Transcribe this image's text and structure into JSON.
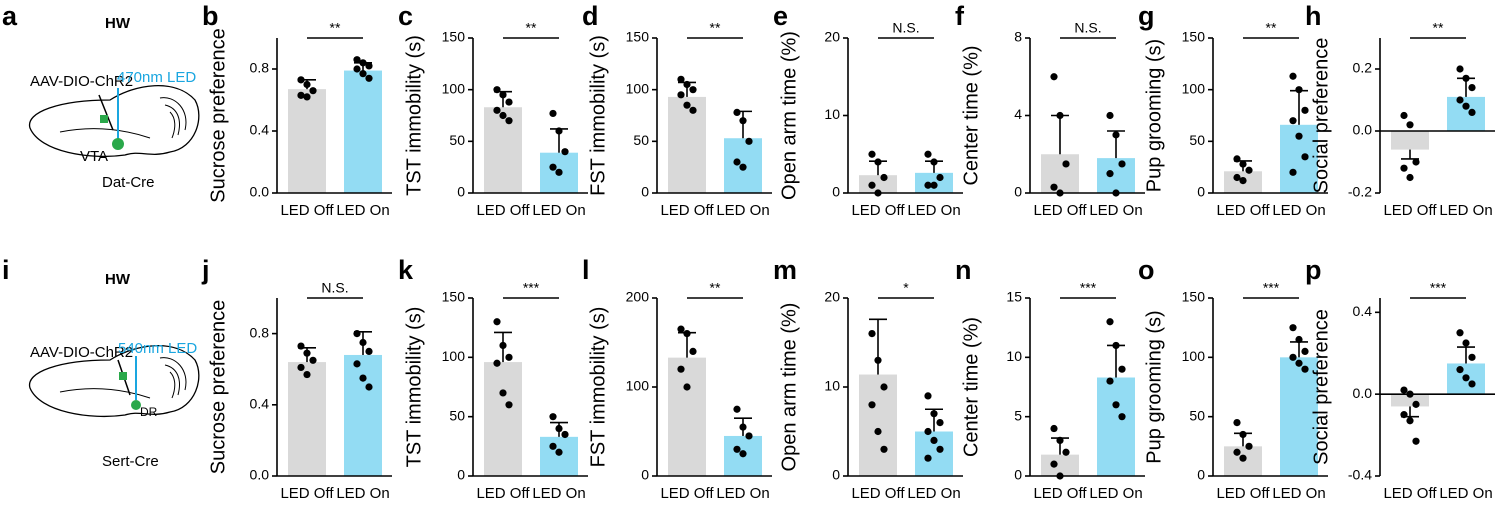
{
  "diagrams": [
    {
      "label": "a",
      "title": "HW",
      "virus": "AAV-DIO-ChR2",
      "light": "470nm LED",
      "region": "VTA",
      "mouse": "Dat-Cre"
    },
    {
      "label": "i",
      "title": "HW",
      "virus": "AAV-DIO-ChR2",
      "light": "540nm LED",
      "region": "DR",
      "mouse": "Sert-Cre"
    }
  ],
  "chart_data": [
    {
      "type": "bar",
      "label": "b",
      "ylabel": "Sucrose preference",
      "categories": [
        "LED Off",
        "LED On"
      ],
      "colors": [
        "#d9d9d9",
        "#93dcf3"
      ],
      "values": [
        0.67,
        0.79
      ],
      "errors": [
        0.06,
        0.05
      ],
      "points": [
        [
          0.73,
          0.7,
          0.66,
          0.63,
          0.62
        ],
        [
          0.86,
          0.84,
          0.82,
          0.8,
          0.77,
          0.74
        ]
      ],
      "significance": "**",
      "ylim": [
        0,
        1.0
      ],
      "yticks": [
        {
          "value": 0,
          "label": "0.0"
        },
        0.4,
        0.8
      ]
    },
    {
      "type": "bar",
      "label": "c",
      "ylabel": "TST immobility (s)",
      "categories": [
        "LED Off",
        "LED On"
      ],
      "colors": [
        "#d9d9d9",
        "#93dcf3"
      ],
      "values": [
        83,
        39
      ],
      "errors": [
        15,
        23
      ],
      "points": [
        [
          100,
          95,
          88,
          80,
          75,
          70
        ],
        [
          77,
          60,
          40,
          25,
          20
        ]
      ],
      "significance": "**",
      "ylim": [
        0,
        150
      ],
      "yticks": [
        0,
        50,
        100,
        150
      ]
    },
    {
      "type": "bar",
      "label": "d",
      "ylabel": "FST immobility (s)",
      "categories": [
        "LED Off",
        "LED On"
      ],
      "colors": [
        "#d9d9d9",
        "#93dcf3"
      ],
      "values": [
        93,
        53
      ],
      "errors": [
        14,
        26
      ],
      "points": [
        [
          110,
          105,
          100,
          95,
          85,
          80
        ],
        [
          78,
          70,
          50,
          30,
          25
        ]
      ],
      "significance": "**",
      "ylim": [
        0,
        150
      ],
      "yticks": [
        0,
        50,
        100,
        150
      ]
    },
    {
      "type": "bar",
      "label": "e",
      "ylabel": "Open arm time (%)",
      "categories": [
        "LED Off",
        "LED On"
      ],
      "colors": [
        "#d9d9d9",
        "#93dcf3"
      ],
      "values": [
        2.3,
        2.6
      ],
      "errors": [
        1.8,
        1.5
      ],
      "points": [
        [
          5,
          4,
          2,
          1,
          0
        ],
        [
          5,
          4,
          2,
          1,
          1
        ]
      ],
      "significance": "N.S.",
      "ylim": [
        0,
        20
      ],
      "yticks": [
        0,
        10,
        20
      ]
    },
    {
      "type": "bar",
      "label": "f",
      "ylabel": "Center time (%)",
      "categories": [
        "LED Off",
        "LED On"
      ],
      "colors": [
        "#d9d9d9",
        "#93dcf3"
      ],
      "values": [
        2,
        1.8
      ],
      "errors": [
        2,
        1.4
      ],
      "points": [
        [
          6,
          4,
          1.5,
          0.3,
          0
        ],
        [
          4,
          3,
          1.5,
          1,
          0
        ]
      ],
      "significance": "N.S.",
      "ylim": [
        0,
        8
      ],
      "yticks": [
        0,
        4,
        8
      ]
    },
    {
      "type": "bar",
      "label": "g",
      "ylabel": "Pup grooming (s)",
      "categories": [
        "LED Off",
        "LED On"
      ],
      "colors": [
        "#d9d9d9",
        "#93dcf3"
      ],
      "values": [
        21,
        66
      ],
      "errors": [
        10,
        33
      ],
      "points": [
        [
          33,
          28,
          22,
          15,
          12
        ],
        [
          113,
          100,
          80,
          70,
          55,
          35,
          20
        ]
      ],
      "significance": "**",
      "ylim": [
        0,
        150
      ],
      "yticks": [
        0,
        50,
        100,
        150
      ]
    },
    {
      "type": "bar",
      "label": "h",
      "ylabel": "Social preference",
      "categories": [
        "LED Off",
        "LED On"
      ],
      "colors": [
        "#d9d9d9",
        "#93dcf3"
      ],
      "values": [
        -0.06,
        0.11
      ],
      "errors": [
        0.03,
        0.06
      ],
      "points": [
        [
          0.05,
          0.02,
          -0.1,
          -0.12,
          -0.15
        ],
        [
          0.2,
          0.17,
          0.14,
          0.1,
          0.08,
          0.06
        ]
      ],
      "significance": "**",
      "ylim": [
        -0.2,
        0.3
      ],
      "yticks": [
        -0.2,
        {
          "value": 0,
          "label": "0.0"
        },
        0.2
      ]
    },
    {
      "type": "bar",
      "label": "j",
      "ylabel": "Sucrose preference",
      "categories": [
        "LED Off",
        "LED On"
      ],
      "colors": [
        "#d9d9d9",
        "#93dcf3"
      ],
      "values": [
        0.64,
        0.68
      ],
      "errors": [
        0.08,
        0.13
      ],
      "points": [
        [
          0.73,
          0.69,
          0.65,
          0.61,
          0.57
        ],
        [
          0.8,
          0.75,
          0.7,
          0.63,
          0.55,
          0.5
        ]
      ],
      "significance": "N.S.",
      "ylim": [
        0,
        1.0
      ],
      "yticks": [
        {
          "value": 0,
          "label": "0.0"
        },
        0.4,
        0.8
      ]
    },
    {
      "type": "bar",
      "label": "k",
      "ylabel": "TST immobility (s)",
      "categories": [
        "LED Off",
        "LED On"
      ],
      "colors": [
        "#d9d9d9",
        "#93dcf3"
      ],
      "values": [
        96,
        33
      ],
      "errors": [
        25,
        12
      ],
      "points": [
        [
          130,
          110,
          100,
          95,
          70,
          60
        ],
        [
          50,
          40,
          35,
          25,
          20
        ]
      ],
      "significance": "***",
      "ylim": [
        0,
        150
      ],
      "yticks": [
        0,
        50,
        100,
        150
      ]
    },
    {
      "type": "bar",
      "label": "l",
      "ylabel": "FST immobility (s)",
      "categories": [
        "LED Off",
        "LED On"
      ],
      "colors": [
        "#d9d9d9",
        "#93dcf3"
      ],
      "values": [
        133,
        45
      ],
      "errors": [
        28,
        20
      ],
      "points": [
        [
          165,
          160,
          140,
          120,
          100
        ],
        [
          75,
          55,
          45,
          30,
          25
        ]
      ],
      "significance": "**",
      "ylim": [
        0,
        200
      ],
      "yticks": [
        0,
        100,
        200
      ]
    },
    {
      "type": "bar",
      "label": "m",
      "ylabel": "Open arm time (%)",
      "categories": [
        "LED Off",
        "LED On"
      ],
      "colors": [
        "#d9d9d9",
        "#93dcf3"
      ],
      "values": [
        11.4,
        5
      ],
      "errors": [
        6.2,
        2.5
      ],
      "points": [
        [
          16,
          13,
          10,
          8,
          5,
          3
        ],
        [
          9,
          7,
          6,
          5,
          4,
          3,
          2
        ]
      ],
      "significance": "*",
      "ylim": [
        0,
        20
      ],
      "yticks": [
        0,
        10,
        20
      ]
    },
    {
      "type": "bar",
      "label": "n",
      "ylabel": "Center time (%)",
      "categories": [
        "LED Off",
        "LED On"
      ],
      "colors": [
        "#d9d9d9",
        "#93dcf3"
      ],
      "values": [
        1.8,
        8.3
      ],
      "errors": [
        1.4,
        2.7
      ],
      "points": [
        [
          4,
          3,
          2,
          1,
          0
        ],
        [
          13,
          11,
          9,
          8,
          6,
          5
        ]
      ],
      "significance": "***",
      "ylim": [
        0,
        15
      ],
      "yticks": [
        0,
        5,
        10,
        15
      ]
    },
    {
      "type": "bar",
      "label": "o",
      "ylabel": "Pup grooming (s)",
      "categories": [
        "LED Off",
        "LED On"
      ],
      "colors": [
        "#d9d9d9",
        "#93dcf3"
      ],
      "values": [
        25,
        100
      ],
      "errors": [
        11,
        13
      ],
      "points": [
        [
          45,
          35,
          25,
          20,
          15
        ],
        [
          125,
          115,
          105,
          100,
          95,
          90
        ]
      ],
      "significance": "***",
      "ylim": [
        0,
        150
      ],
      "yticks": [
        0,
        50,
        100,
        150
      ]
    },
    {
      "type": "bar",
      "label": "p",
      "ylabel": "Social preference",
      "categories": [
        "LED Off",
        "LED On"
      ],
      "colors": [
        "#d9d9d9",
        "#93dcf3"
      ],
      "values": [
        -0.06,
        0.15
      ],
      "errors": [
        0.05,
        0.08
      ],
      "points": [
        [
          0.02,
          0.0,
          -0.05,
          -0.1,
          -0.13,
          -0.23
        ],
        [
          0.3,
          0.25,
          0.18,
          0.12,
          0.08,
          0.05
        ]
      ],
      "significance": "***",
      "ylim": [
        -0.4,
        0.47
      ],
      "yticks": [
        -0.4,
        {
          "value": 0,
          "label": "0.0"
        },
        0.4
      ]
    }
  ]
}
